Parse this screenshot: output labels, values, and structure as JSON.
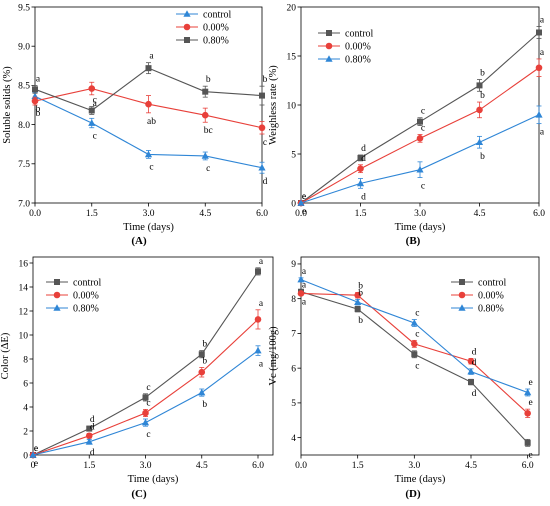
{
  "colors": {
    "control": "#555555",
    "p000": "#e8403a",
    "p080": "#2f86d6"
  },
  "chart_data": [
    {
      "panel_label": "(A)",
      "type": "line",
      "xlabel": "Time (days)",
      "ylabel": "Soluble solids (%)",
      "xlim": [
        0,
        6
      ],
      "ylim": [
        7.0,
        9.5
      ],
      "xticks": [
        0,
        1.5,
        3,
        4.5,
        6
      ],
      "xtick_labels": [
        "0.0",
        "1.5",
        "3.0",
        "4.5",
        "6.0"
      ],
      "yticks": [
        7.0,
        7.5,
        8.0,
        8.5,
        9.0,
        9.5
      ],
      "ytick_labels": [
        "7.0",
        "7.5",
        "8.0",
        "8.5",
        "9.0",
        "9.5"
      ],
      "legend": "top-right",
      "x": [
        0,
        1.5,
        3,
        4.5,
        6
      ],
      "series": [
        {
          "key": "p080",
          "name": "control",
          "marker": "triangle",
          "values": [
            8.36,
            8.02,
            7.62,
            7.6,
            7.45
          ],
          "errors": [
            0.05,
            0.06,
            0.05,
            0.05,
            0.07
          ],
          "letters": [
            "b",
            "c",
            "c",
            "c",
            "d"
          ]
        },
        {
          "key": "p000",
          "name": "0.00%",
          "marker": "circle",
          "values": [
            8.3,
            8.46,
            8.26,
            8.12,
            7.96
          ],
          "errors": [
            0.05,
            0.08,
            0.11,
            0.09,
            0.08
          ],
          "letters": [
            "b",
            "a",
            "ab",
            "bc",
            "c"
          ]
        },
        {
          "key": "control",
          "name": "0.80%",
          "marker": "square",
          "values": [
            8.45,
            8.18,
            8.72,
            8.42,
            8.37
          ],
          "errors": [
            0.05,
            0.05,
            0.07,
            0.07,
            0.12
          ],
          "letters": [
            "a",
            "c",
            "a",
            "b",
            "b"
          ]
        }
      ]
    },
    {
      "panel_label": "(B)",
      "type": "line",
      "xlabel": "Time (days)",
      "ylabel": "Weighless rate (%)",
      "xlim": [
        0,
        6
      ],
      "ylim": [
        0,
        20
      ],
      "xticks": [
        0,
        1.5,
        3,
        4.5,
        6
      ],
      "xtick_labels": [
        "0.0",
        "1.5",
        "3.0",
        "4.5",
        "6.0"
      ],
      "yticks": [
        0,
        5,
        10,
        15,
        20
      ],
      "ytick_labels": [
        "0",
        "5",
        "10",
        "15",
        "20"
      ],
      "legend": "top-left",
      "x": [
        0,
        1.5,
        3,
        4.5,
        6
      ],
      "series": [
        {
          "key": "control",
          "name": "control",
          "marker": "square",
          "values": [
            0,
            4.6,
            8.3,
            12.0,
            17.4
          ],
          "errors": [
            0,
            0.3,
            0.4,
            0.6,
            0.6
          ],
          "letters": [
            "e",
            "d",
            "c",
            "b",
            "a"
          ]
        },
        {
          "key": "p000",
          "name": "0.00%",
          "marker": "circle",
          "values": [
            0,
            3.5,
            6.6,
            9.5,
            13.8
          ],
          "errors": [
            0,
            0.4,
            0.4,
            0.8,
            0.9
          ],
          "letters": [
            "e",
            "d",
            "c",
            "b",
            "a"
          ]
        },
        {
          "key": "p080",
          "name": "0.80%",
          "marker": "triangle",
          "values": [
            0,
            2.0,
            3.4,
            6.2,
            9.0
          ],
          "errors": [
            0,
            0.5,
            0.8,
            0.6,
            0.9
          ],
          "letters": [
            "e",
            "d",
            "c",
            "b",
            "a"
          ]
        }
      ]
    },
    {
      "panel_label": "(C)",
      "type": "line",
      "xlabel": "Time (days)",
      "ylabel": "Color (ΔE)",
      "xlim": [
        0,
        6.4
      ],
      "ylim": [
        0,
        16.5
      ],
      "xticks": [
        0,
        1.5,
        3,
        4.5,
        6
      ],
      "xtick_labels": [
        "0",
        "1.5",
        "3.0",
        "4.5",
        "6.0"
      ],
      "yticks": [
        0,
        2,
        4,
        6,
        8,
        10,
        12,
        14,
        16
      ],
      "ytick_labels": [
        "0",
        "2",
        "4",
        "6",
        "8",
        "10",
        "12",
        "14",
        "16"
      ],
      "legend": "top-left",
      "x": [
        0,
        1.5,
        3,
        4.5,
        6
      ],
      "series": [
        {
          "key": "control",
          "name": "control",
          "marker": "square",
          "values": [
            0,
            2.2,
            4.8,
            8.4,
            15.3
          ],
          "errors": [
            0,
            0.2,
            0.3,
            0.3,
            0.3
          ],
          "letters": [
            "e",
            "d",
            "c",
            "b",
            "a"
          ]
        },
        {
          "key": "p000",
          "name": "0.00%",
          "marker": "circle",
          "values": [
            0,
            1.6,
            3.5,
            6.9,
            11.3
          ],
          "errors": [
            0,
            0.2,
            0.3,
            0.4,
            0.8
          ],
          "letters": [
            "e",
            "d",
            "c",
            "b",
            "a"
          ]
        },
        {
          "key": "p080",
          "name": "0.80%",
          "marker": "triangle",
          "values": [
            0,
            1.1,
            2.7,
            5.2,
            8.7
          ],
          "errors": [
            0,
            0.2,
            0.3,
            0.3,
            0.4
          ],
          "letters": [
            "e",
            "d",
            "c",
            "b",
            "a"
          ]
        }
      ]
    },
    {
      "panel_label": "(D)",
      "type": "line",
      "xlabel": "Time (days)",
      "ylabel": "Vc (mg/100g)",
      "xlim": [
        0,
        6.3
      ],
      "ylim": [
        3.5,
        9.2
      ],
      "xticks": [
        0,
        1.5,
        3,
        4.5,
        6
      ],
      "xtick_labels": [
        "0.0",
        "1.5",
        "3.0",
        "4.5",
        "6.0"
      ],
      "yticks": [
        4,
        5,
        6,
        7,
        8,
        9
      ],
      "ytick_labels": [
        "4",
        "5",
        "6",
        "7",
        "8",
        "9"
      ],
      "legend": "top-right",
      "x": [
        0,
        1.5,
        3,
        4.5,
        6
      ],
      "series": [
        {
          "key": "control",
          "name": "control",
          "marker": "square",
          "values": [
            8.2,
            7.7,
            6.4,
            5.6,
            3.85
          ],
          "errors": [
            0.05,
            0.08,
            0.1,
            0.08,
            0.1
          ],
          "letters": [
            "a",
            "b",
            "c",
            "d",
            "e"
          ]
        },
        {
          "key": "p000",
          "name": "0.00%",
          "marker": "circle",
          "values": [
            8.15,
            8.1,
            6.7,
            6.2,
            4.7
          ],
          "errors": [
            0.05,
            0.08,
            0.1,
            0.08,
            0.12
          ],
          "letters": [
            "a",
            "b",
            "c",
            "d",
            "e"
          ]
        },
        {
          "key": "p080",
          "name": "0.80%",
          "marker": "triangle",
          "values": [
            8.55,
            7.9,
            7.3,
            5.9,
            5.3
          ],
          "errors": [
            0.05,
            0.08,
            0.1,
            0.08,
            0.1
          ],
          "letters": [
            "a",
            "b",
            "c",
            "d",
            "e"
          ]
        }
      ]
    }
  ]
}
